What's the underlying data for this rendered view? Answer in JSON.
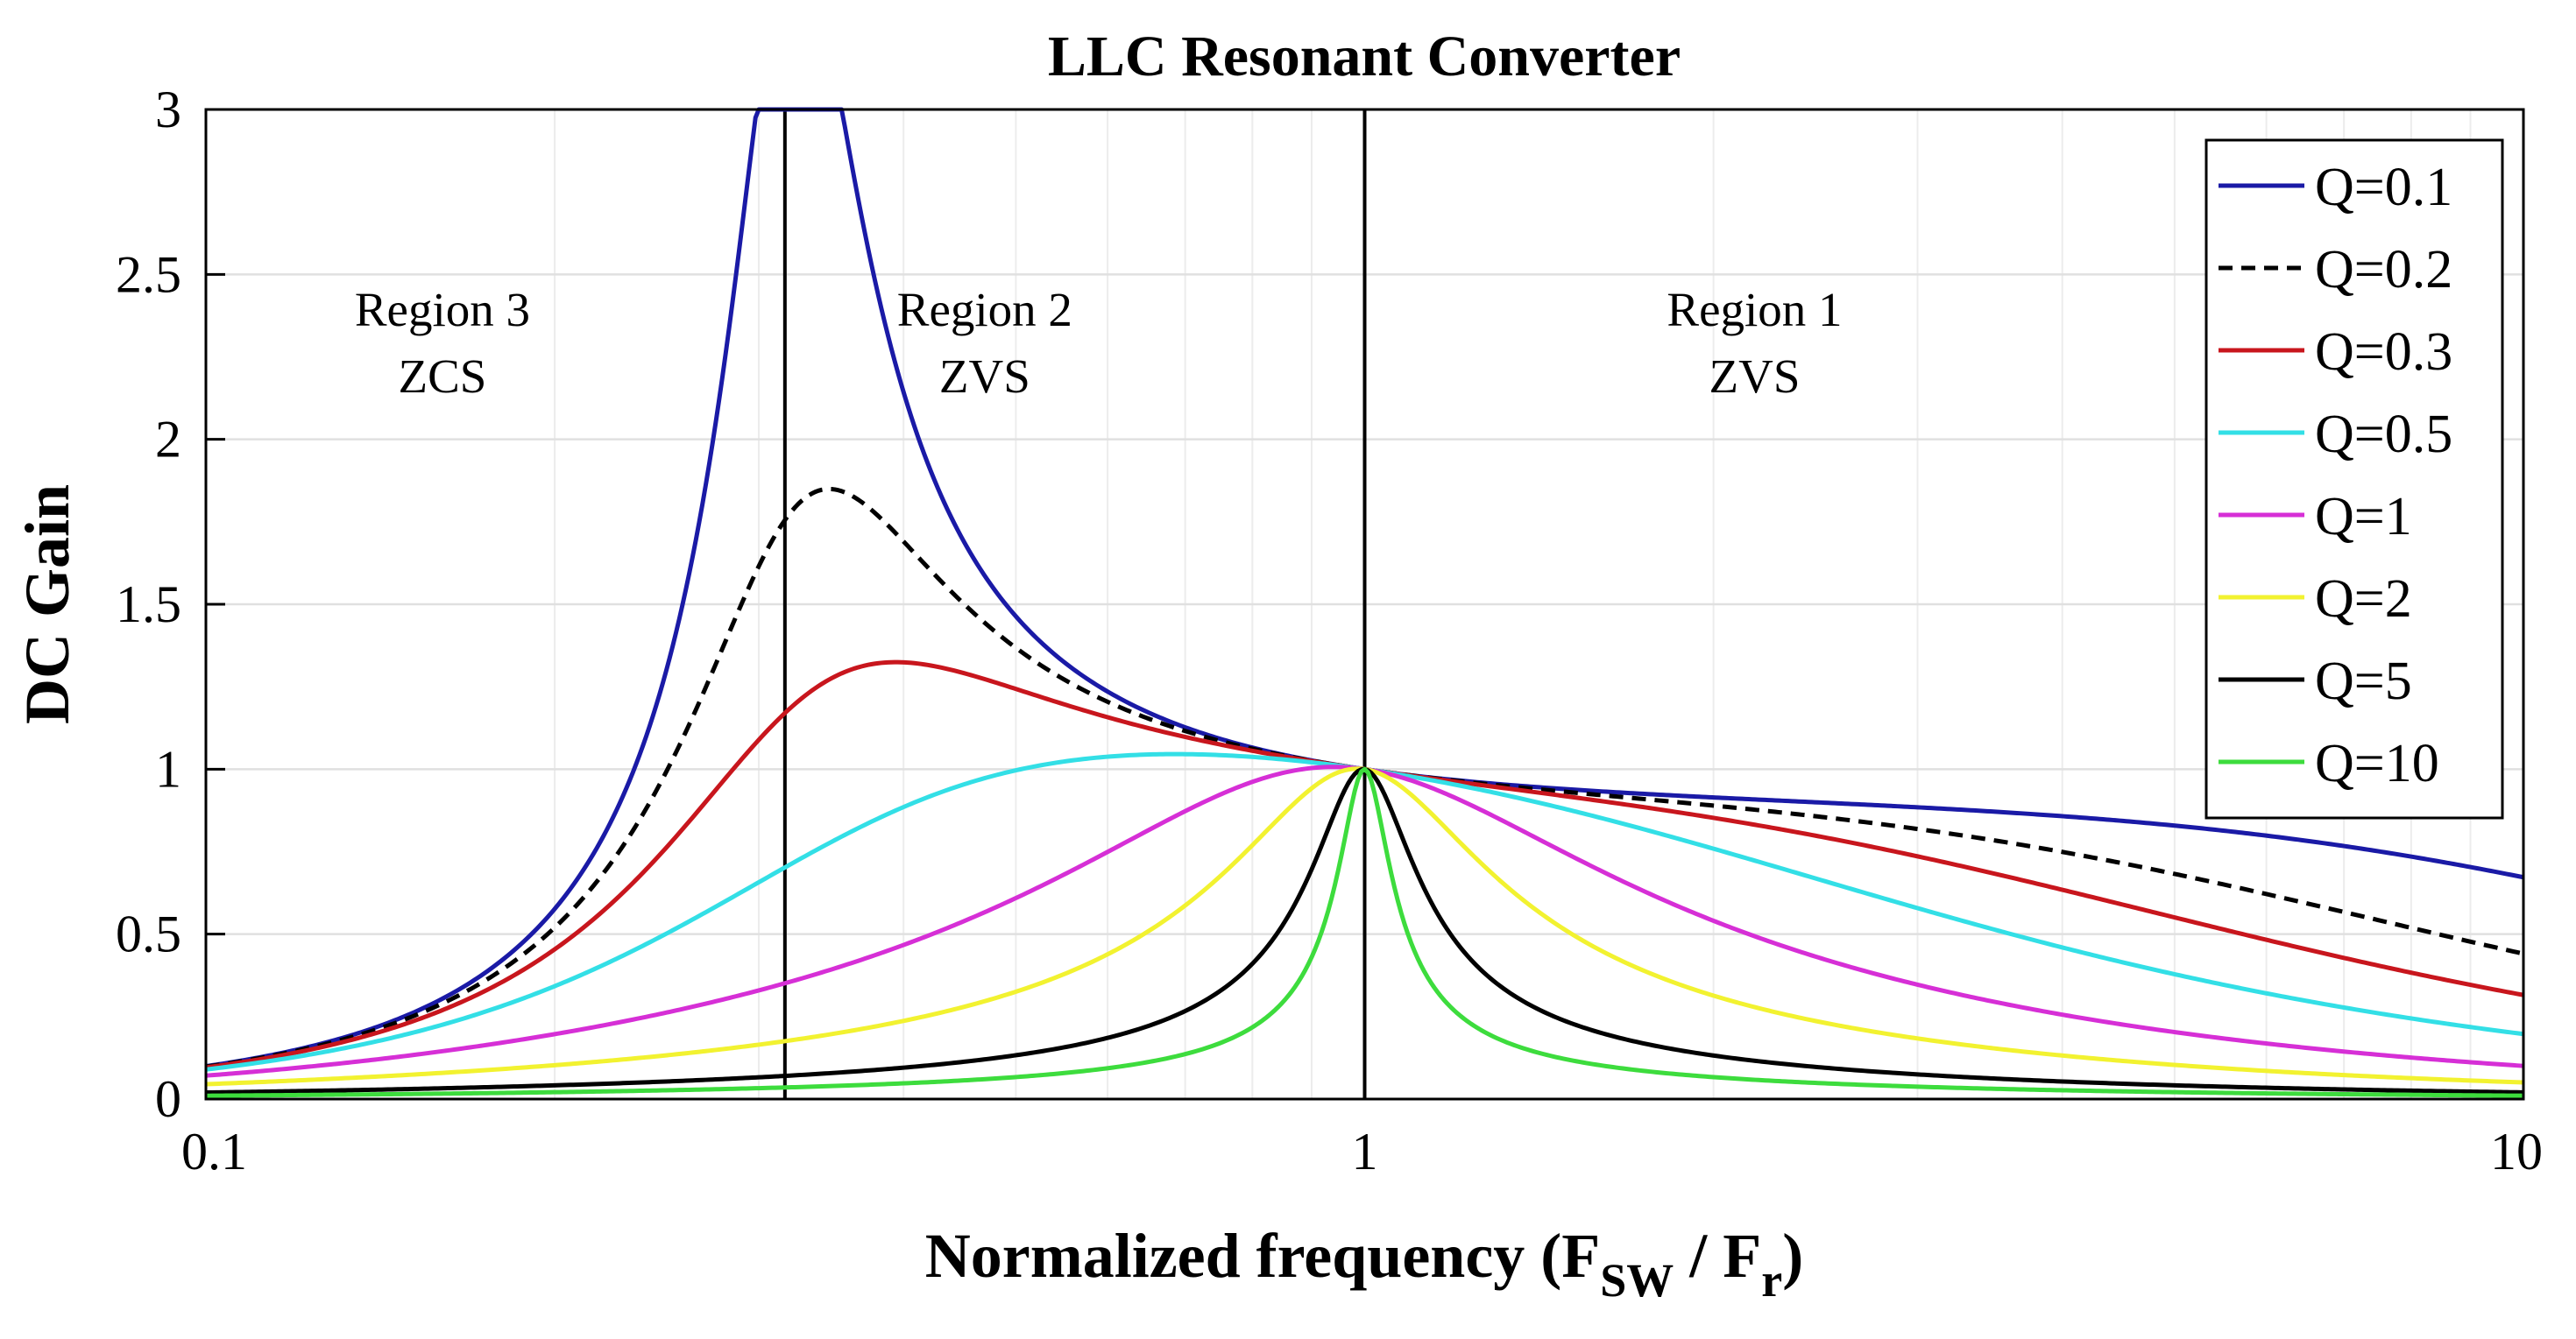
{
  "chart_data": {
    "type": "line",
    "title": "LLC Resonant Converter",
    "xlabel": {
      "main": "Normalized frequency (F",
      "sub1": "SW",
      "mid": " / F",
      "sub2": "r",
      "end": ")"
    },
    "ylabel": "DC Gain",
    "xscale": "log",
    "xlim": [
      0.1,
      10
    ],
    "ylim": [
      0,
      3
    ],
    "grid": true,
    "legend_position": "top-right",
    "x_ticks": [
      {
        "value": 0.1,
        "label": "0.1"
      },
      {
        "value": 1,
        "label": "1"
      },
      {
        "value": 10,
        "label": "10"
      }
    ],
    "y_ticks": [
      {
        "value": 0,
        "label": "0"
      },
      {
        "value": 0.5,
        "label": "0.5"
      },
      {
        "value": 1,
        "label": "1"
      },
      {
        "value": 1.5,
        "label": "1.5"
      },
      {
        "value": 2,
        "label": "2"
      },
      {
        "value": 2.5,
        "label": "2.5"
      },
      {
        "value": 3,
        "label": "3"
      }
    ],
    "ln_ratio": 9,
    "vertical_lines": [
      {
        "x": 0.316,
        "color": "#000000"
      },
      {
        "x": 1,
        "color": "#000000"
      }
    ],
    "regions": [
      {
        "name": "Region 3",
        "mode": "ZCS",
        "x": 0.16
      },
      {
        "name": "Region 2",
        "mode": "ZVS",
        "x": 0.47
      },
      {
        "name": "Region 1",
        "mode": "ZVS",
        "x": 2.17
      }
    ],
    "series": [
      {
        "name": "Q=0.1",
        "Q": 0.1,
        "color": "#1a1aa6",
        "dashed": false
      },
      {
        "name": "Q=0.2",
        "Q": 0.2,
        "color": "#000000",
        "dashed": true
      },
      {
        "name": "Q=0.3",
        "Q": 0.3,
        "color": "#c8161d",
        "dashed": false
      },
      {
        "name": "Q=0.5",
        "Q": 0.5,
        "color": "#33dfe6",
        "dashed": false
      },
      {
        "name": "Q=1",
        "Q": 1,
        "color": "#d62fd6",
        "dashed": false
      },
      {
        "name": "Q=2",
        "Q": 2,
        "color": "#f2f230",
        "dashed": false
      },
      {
        "name": "Q=5",
        "Q": 5,
        "color": "#000000",
        "dashed": false
      },
      {
        "name": "Q=10",
        "Q": 10,
        "color": "#3ddc3d",
        "dashed": false
      }
    ]
  }
}
